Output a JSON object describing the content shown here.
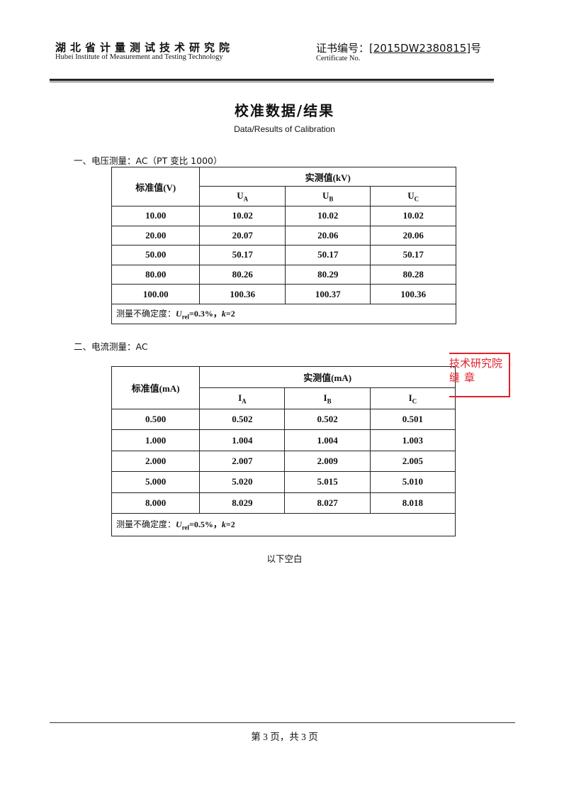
{
  "header": {
    "org_cn": "湖北省计量测试技术研究院",
    "org_en": "Hubei Institute of Measurement and Testing Technology",
    "cert_label": "证书编号：",
    "cert_no": "2015DW2380815",
    "cert_suffix": "号",
    "cert_en": "Certificate No."
  },
  "title": {
    "cn": "校准数据/结果",
    "en": "Data/Results of Calibration"
  },
  "voltage": {
    "heading": "一、电压测量：AC（PT 变比 1000）",
    "std_header": "标准值(V)",
    "meas_header": "实测值(kV)",
    "phases": [
      {
        "base": "U",
        "sub": "A"
      },
      {
        "base": "U",
        "sub": "B"
      },
      {
        "base": "U",
        "sub": "C"
      }
    ],
    "rows": [
      [
        "10.00",
        "10.02",
        "10.02",
        "10.02"
      ],
      [
        "20.00",
        "20.07",
        "20.06",
        "20.06"
      ],
      [
        "50.00",
        "50.17",
        "50.17",
        "50.17"
      ],
      [
        "80.00",
        "80.26",
        "80.29",
        "80.28"
      ],
      [
        "100.00",
        "100.36",
        "100.37",
        "100.36"
      ]
    ],
    "uncertainty": {
      "label": "测量不确定度：",
      "u": "U",
      "sub": "rel",
      "value": "=0.3%，",
      "k": "k",
      "k_value": "=2"
    }
  },
  "current": {
    "heading": "二、电流测量：AC",
    "std_header": "标准值(mA)",
    "meas_header": "实测值(mA)",
    "phases": [
      {
        "base": "I",
        "sub": "A"
      },
      {
        "base": "I",
        "sub": "B"
      },
      {
        "base": "I",
        "sub": "C"
      }
    ],
    "rows": [
      [
        "0.500",
        "0.502",
        "0.502",
        "0.501"
      ],
      [
        "1.000",
        "1.004",
        "1.004",
        "1.003"
      ],
      [
        "2.000",
        "2.007",
        "2.009",
        "2.005"
      ],
      [
        "5.000",
        "5.020",
        "5.015",
        "5.010"
      ],
      [
        "8.000",
        "8.029",
        "8.027",
        "8.018"
      ]
    ],
    "uncertainty": {
      "label": "测量不确定度：",
      "u": "U",
      "sub": "rel",
      "value": "=0.5%，",
      "k": "k",
      "k_value": "=2"
    }
  },
  "stamp": {
    "line1": "技术研究院",
    "line2": "缝章",
    "color": "#e0202a"
  },
  "blank_note": "以下空白",
  "footer": {
    "pager": "第 3 页，共 3 页"
  }
}
